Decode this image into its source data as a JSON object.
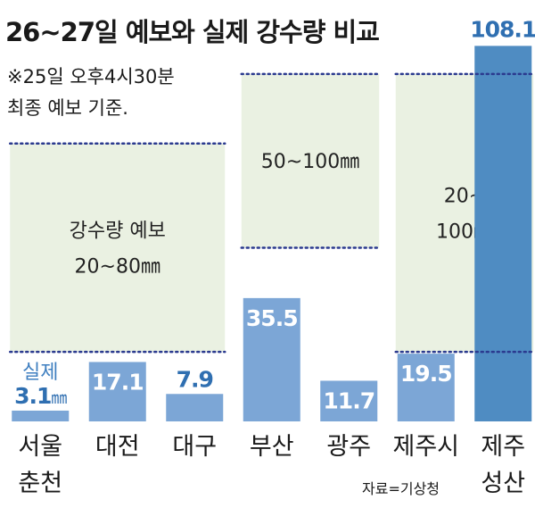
{
  "chart_data": {
    "type": "bar",
    "title": "26~27일 예보와 실제 강수량 비교",
    "note_lines": [
      "※25일 오후4시30분",
      "최종 예보 기준."
    ],
    "source": "자료=기상청",
    "actual_label": "실제",
    "unit": "㎜",
    "ylim": [
      0,
      110
    ],
    "categories": [
      {
        "lines": [
          "서울",
          "춘천"
        ],
        "value": 3.1,
        "value_label": "3.1",
        "show_unit": true
      },
      {
        "lines": [
          "대전"
        ],
        "value": 17.1,
        "value_label": "17.1"
      },
      {
        "lines": [
          "대구"
        ],
        "value": 7.9,
        "value_label": "7.9"
      },
      {
        "lines": [
          "부산"
        ],
        "value": 35.5,
        "value_label": "35.5"
      },
      {
        "lines": [
          "광주"
        ],
        "value": 11.7,
        "value_label": "11.7"
      },
      {
        "lines": [
          "제주시"
        ],
        "value": 19.5,
        "value_label": "19.5"
      },
      {
        "lines": [
          "제주",
          "성산"
        ],
        "value": 108.1,
        "value_label": "108.1",
        "highlight": true
      }
    ],
    "forecast_bands": [
      {
        "from_category": 0,
        "to_category": 2,
        "min": 20,
        "max": 80,
        "lines": [
          "강수량 예보",
          "20~80㎜"
        ]
      },
      {
        "from_category": 3,
        "to_category": 4,
        "min": 50,
        "max": 100,
        "lines": [
          "50~100㎜"
        ]
      },
      {
        "from_category": 5,
        "to_category": 6,
        "min": 20,
        "max": 100,
        "lines": [
          "20~",
          "100㎜"
        ]
      }
    ],
    "colors": {
      "bar": "#7ca6d6",
      "bar_highlight": "#4f8cc2",
      "band": "#eaf1e2",
      "dotted": "#2b3a8f",
      "value_inside": "#ffffff",
      "value_outside": "#2f6fb1",
      "actual_label": "#3f7fc0"
    }
  }
}
